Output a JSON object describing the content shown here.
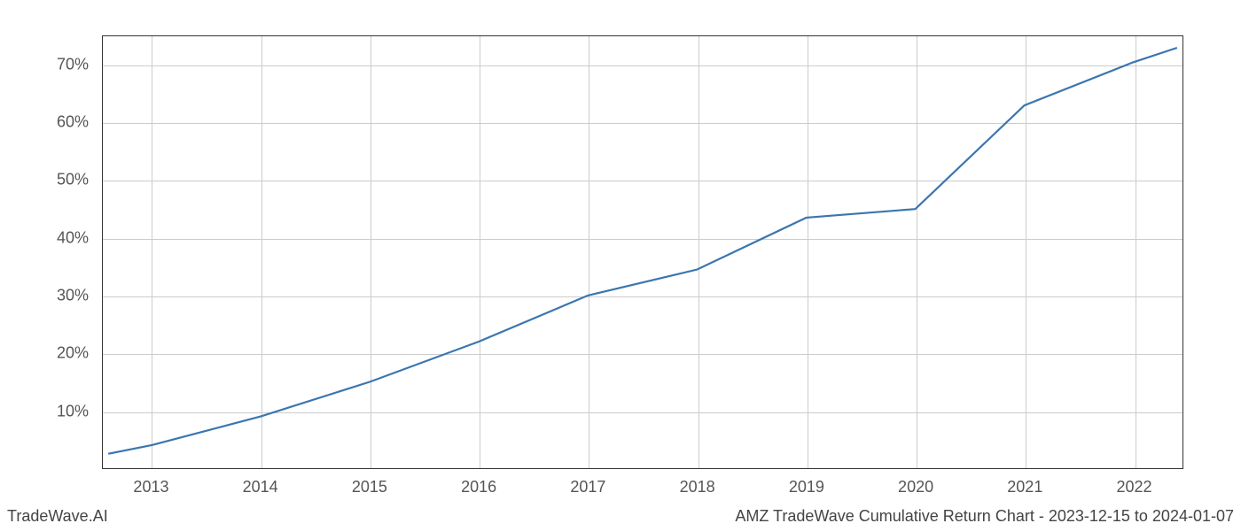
{
  "chart": {
    "type": "line",
    "x_values": [
      2012.6,
      2013,
      2014,
      2015,
      2016,
      2017,
      2018,
      2019,
      2020,
      2021,
      2022,
      2022.4
    ],
    "y_values": [
      2.5,
      4,
      9,
      15,
      22,
      30,
      34.5,
      43.5,
      45,
      63,
      70.5,
      73
    ],
    "x_ticks": [
      2013,
      2014,
      2015,
      2016,
      2017,
      2018,
      2019,
      2020,
      2021,
      2022
    ],
    "x_tick_labels": [
      "2013",
      "2014",
      "2015",
      "2016",
      "2017",
      "2018",
      "2019",
      "2020",
      "2021",
      "2022"
    ],
    "y_ticks": [
      10,
      20,
      30,
      40,
      50,
      60,
      70
    ],
    "y_tick_labels": [
      "10%",
      "20%",
      "30%",
      "40%",
      "50%",
      "60%",
      "70%"
    ],
    "xlim": [
      2012.55,
      2022.45
    ],
    "ylim": [
      0,
      75
    ],
    "line_color": "#3a76af",
    "line_width": 2.2,
    "grid_color": "#cccccc",
    "border_color": "#333333",
    "background_color": "#ffffff",
    "tick_font_size": 18,
    "tick_color": "#555555"
  },
  "footer": {
    "left_text": "TradeWave.AI",
    "right_text": "AMZ TradeWave Cumulative Return Chart - 2023-12-15 to 2024-01-07",
    "font_size": 18,
    "color": "#444444"
  }
}
